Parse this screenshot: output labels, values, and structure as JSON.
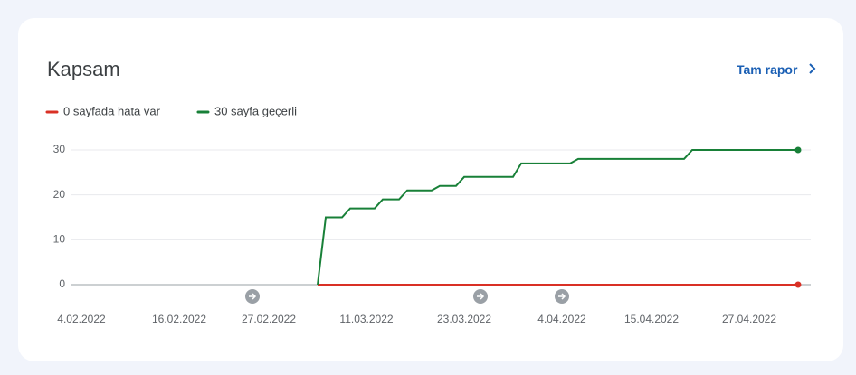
{
  "header": {
    "title": "Kapsam",
    "link": "Tam rapor"
  },
  "chart_data": {
    "type": "line",
    "categories": [
      null,
      "4.02.2022",
      null,
      null,
      null,
      null,
      null,
      null,
      null,
      null,
      null,
      null,
      null,
      "16.02.2022",
      null,
      null,
      null,
      null,
      null,
      null,
      null,
      null,
      null,
      null,
      "27.02.2022",
      null,
      null,
      null,
      null,
      null,
      null,
      null,
      null,
      null,
      null,
      null,
      "11.03.2022",
      null,
      null,
      null,
      null,
      null,
      null,
      null,
      null,
      null,
      null,
      null,
      "23.03.2022",
      null,
      null,
      null,
      null,
      null,
      null,
      null,
      null,
      null,
      null,
      null,
      "4.04.2022",
      null,
      null,
      null,
      null,
      null,
      null,
      null,
      null,
      null,
      null,
      "15.04.2022",
      null,
      null,
      null,
      null,
      null,
      null,
      null,
      null,
      null,
      null,
      null,
      "27.04.2022",
      null,
      null,
      null,
      null,
      null,
      null
    ],
    "series": [
      {
        "name": "0 sayfada hata var",
        "color": "#d93025",
        "values": [
          null,
          null,
          null,
          null,
          null,
          null,
          null,
          null,
          null,
          null,
          null,
          null,
          null,
          null,
          null,
          null,
          null,
          null,
          null,
          null,
          null,
          null,
          null,
          null,
          null,
          null,
          null,
          null,
          null,
          null,
          0,
          0,
          0,
          0,
          0,
          0,
          0,
          0,
          0,
          0,
          0,
          0,
          0,
          0,
          0,
          0,
          0,
          0,
          0,
          0,
          0,
          0,
          0,
          0,
          0,
          0,
          0,
          0,
          0,
          0,
          0,
          0,
          0,
          0,
          0,
          0,
          0,
          0,
          0,
          0,
          0,
          0,
          0,
          0,
          0,
          0,
          0,
          0,
          0,
          0,
          0,
          0,
          0,
          0,
          0,
          0,
          0,
          0,
          0,
          0
        ]
      },
      {
        "name": "30 sayfa geçerli",
        "color": "#188038",
        "values": [
          null,
          null,
          null,
          null,
          null,
          null,
          null,
          null,
          null,
          null,
          null,
          null,
          null,
          null,
          null,
          null,
          null,
          null,
          null,
          null,
          null,
          null,
          null,
          null,
          null,
          null,
          null,
          null,
          null,
          null,
          0,
          15,
          15,
          15,
          17,
          17,
          17,
          17,
          19,
          19,
          19,
          21,
          21,
          21,
          21,
          22,
          22,
          22,
          24,
          24,
          24,
          24,
          24,
          24,
          24,
          27,
          27,
          27,
          27,
          27,
          27,
          27,
          28,
          28,
          28,
          28,
          28,
          28,
          28,
          28,
          28,
          28,
          28,
          28,
          28,
          28,
          30,
          30,
          30,
          30,
          30,
          30,
          30,
          30,
          30,
          30,
          30,
          30,
          30,
          30
        ]
      }
    ],
    "ylim": [
      0,
      30
    ],
    "yticks": [
      0,
      10,
      20,
      30
    ],
    "grid": true
  }
}
